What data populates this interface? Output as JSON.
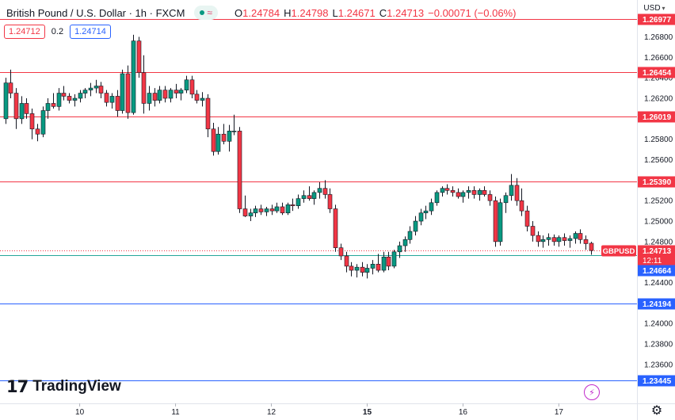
{
  "header": {
    "title": "British Pound / U.S. Dollar · 1h · FXCM",
    "ohlc": {
      "o_label": "O",
      "o": "1.24784",
      "h_label": "H",
      "h": "1.24798",
      "l_label": "L",
      "l": "1.24671",
      "c_label": "C",
      "c": "1.24713",
      "change": "−0.00071 (−0.06%)"
    }
  },
  "quote": {
    "bid": "1.24712",
    "spread": "0.2",
    "ask": "1.24714"
  },
  "currency": "USD",
  "branding": "TradingView",
  "colors": {
    "up": "#089981",
    "down": "#f23645",
    "candle": "#131722",
    "red_level": "#f23645",
    "blue_level": "#2962ff",
    "ema": "#26a69a"
  },
  "chart_data": {
    "type": "candlestick",
    "symbol": "GBPUSD",
    "timeframe": "1h",
    "ylim": [
      1.2322,
      1.2716
    ],
    "y_ticks": [
      "1.26800",
      "1.26600",
      "1.26400",
      "1.26200",
      "1.25800",
      "1.25600",
      "1.25200",
      "1.25000",
      "1.24800",
      "1.24400",
      "1.24000",
      "1.23800",
      "1.23600"
    ],
    "x_ticks": [
      {
        "label": "10",
        "bar": 14,
        "bold": false
      },
      {
        "label": "11",
        "bar": 32,
        "bold": false
      },
      {
        "label": "12",
        "bar": 50,
        "bold": false
      },
      {
        "label": "15",
        "bar": 68,
        "bold": true
      },
      {
        "label": "16",
        "bar": 86,
        "bold": false
      },
      {
        "label": "17",
        "bar": 104,
        "bold": false
      }
    ],
    "levels": [
      {
        "value": 1.26977,
        "label": "1.26977",
        "color": "red"
      },
      {
        "value": 1.26454,
        "label": "1.26454",
        "color": "red"
      },
      {
        "value": 1.26019,
        "label": "1.26019",
        "color": "red"
      },
      {
        "value": 1.2539,
        "label": "1.25390",
        "color": "red"
      },
      {
        "value": 1.24194,
        "label": "1.24194",
        "color": "blue"
      },
      {
        "value": 1.23445,
        "label": "1.23445",
        "color": "blue"
      }
    ],
    "current_price": {
      "value": 1.24713,
      "label": "1.24713",
      "symbol": "GBPUSD",
      "countdown": "12:11"
    },
    "ema": {
      "value": 1.24664,
      "label": "1.24664"
    },
    "candles": [
      [
        1.26,
        1.264,
        1.2595,
        1.2635
      ],
      [
        1.2635,
        1.2648,
        1.262,
        1.2625
      ],
      [
        1.2625,
        1.263,
        1.259,
        1.26
      ],
      [
        1.26,
        1.2622,
        1.2595,
        1.2615
      ],
      [
        1.2615,
        1.262,
        1.26,
        1.2605
      ],
      [
        1.2605,
        1.261,
        1.258,
        1.259
      ],
      [
        1.259,
        1.2595,
        1.2578,
        1.2585
      ],
      [
        1.2585,
        1.2612,
        1.2582,
        1.2608
      ],
      [
        1.2608,
        1.262,
        1.26,
        1.2615
      ],
      [
        1.2615,
        1.2625,
        1.261,
        1.2612
      ],
      [
        1.2612,
        1.263,
        1.2608,
        1.2625
      ],
      [
        1.2625,
        1.2632,
        1.2618,
        1.2622
      ],
      [
        1.2622,
        1.2625,
        1.2615,
        1.2618
      ],
      [
        1.2618,
        1.2624,
        1.2612,
        1.262
      ],
      [
        1.262,
        1.2628,
        1.2616,
        1.2625
      ],
      [
        1.2625,
        1.263,
        1.262,
        1.2628
      ],
      [
        1.2628,
        1.2635,
        1.2622,
        1.263
      ],
      [
        1.263,
        1.2638,
        1.2625,
        1.2632
      ],
      [
        1.2632,
        1.2636,
        1.262,
        1.2625
      ],
      [
        1.2625,
        1.2628,
        1.2612,
        1.2616
      ],
      [
        1.2616,
        1.2625,
        1.261,
        1.2622
      ],
      [
        1.2622,
        1.2628,
        1.2602,
        1.2608
      ],
      [
        1.2608,
        1.2648,
        1.2605,
        1.2644
      ],
      [
        1.2644,
        1.2652,
        1.26,
        1.2606
      ],
      [
        1.2606,
        1.2682,
        1.2604,
        1.2676
      ],
      [
        1.2676,
        1.268,
        1.264,
        1.2645
      ],
      [
        1.2645,
        1.2662,
        1.2605,
        1.2615
      ],
      [
        1.2615,
        1.2632,
        1.2608,
        1.2625
      ],
      [
        1.2625,
        1.263,
        1.2612,
        1.2618
      ],
      [
        1.2618,
        1.2632,
        1.2615,
        1.2628
      ],
      [
        1.2628,
        1.2632,
        1.2616,
        1.262
      ],
      [
        1.262,
        1.263,
        1.2616,
        1.2628
      ],
      [
        1.2628,
        1.2634,
        1.262,
        1.2625
      ],
      [
        1.2625,
        1.263,
        1.2618,
        1.2628
      ],
      [
        1.2628,
        1.2642,
        1.2625,
        1.2638
      ],
      [
        1.2638,
        1.2642,
        1.262,
        1.2624
      ],
      [
        1.2624,
        1.2628,
        1.2615,
        1.2618
      ],
      [
        1.2618,
        1.2626,
        1.2612,
        1.262
      ],
      [
        1.262,
        1.2624,
        1.2582,
        1.259
      ],
      [
        1.259,
        1.2596,
        1.2564,
        1.2568
      ],
      [
        1.2568,
        1.2592,
        1.2565,
        1.2585
      ],
      [
        1.2585,
        1.2595,
        1.2575,
        1.2578
      ],
      [
        1.2578,
        1.2594,
        1.2568,
        1.2588
      ],
      [
        1.2588,
        1.2604,
        1.2584,
        1.2588
      ],
      [
        1.2588,
        1.2592,
        1.2508,
        1.2512
      ],
      [
        1.2512,
        1.2525,
        1.2504,
        1.2505
      ],
      [
        1.2505,
        1.2512,
        1.25,
        1.2508
      ],
      [
        1.2508,
        1.2515,
        1.2504,
        1.2512
      ],
      [
        1.2512,
        1.2516,
        1.2506,
        1.2509
      ],
      [
        1.2509,
        1.2514,
        1.2505,
        1.2512
      ],
      [
        1.2512,
        1.2516,
        1.2506,
        1.251
      ],
      [
        1.251,
        1.2518,
        1.2508,
        1.2514
      ],
      [
        1.2514,
        1.2518,
        1.2506,
        1.2508
      ],
      [
        1.2508,
        1.2518,
        1.2506,
        1.2516
      ],
      [
        1.2516,
        1.2522,
        1.251,
        1.2515
      ],
      [
        1.2515,
        1.2526,
        1.2512,
        1.2522
      ],
      [
        1.2522,
        1.253,
        1.2518,
        1.2525
      ],
      [
        1.2525,
        1.2534,
        1.252,
        1.2522
      ],
      [
        1.2522,
        1.253,
        1.2516,
        1.2528
      ],
      [
        1.2528,
        1.2538,
        1.2522,
        1.2532
      ],
      [
        1.2532,
        1.254,
        1.2522,
        1.2526
      ],
      [
        1.2526,
        1.2532,
        1.2508,
        1.2512
      ],
      [
        1.2512,
        1.2516,
        1.247,
        1.2474
      ],
      [
        1.2474,
        1.2478,
        1.2462,
        1.2466
      ],
      [
        1.2466,
        1.247,
        1.245,
        1.2456
      ],
      [
        1.2456,
        1.246,
        1.2446,
        1.2452
      ],
      [
        1.2452,
        1.2458,
        1.2445,
        1.2455
      ],
      [
        1.2455,
        1.246,
        1.2446,
        1.245
      ],
      [
        1.245,
        1.2458,
        1.2444,
        1.2454
      ],
      [
        1.2454,
        1.2462,
        1.2448,
        1.2458
      ],
      [
        1.2458,
        1.2468,
        1.245,
        1.2452
      ],
      [
        1.2452,
        1.247,
        1.245,
        1.2465
      ],
      [
        1.2465,
        1.247,
        1.2452,
        1.2456
      ],
      [
        1.2456,
        1.2472,
        1.2454,
        1.247
      ],
      [
        1.247,
        1.248,
        1.2464,
        1.2476
      ],
      [
        1.2476,
        1.2485,
        1.247,
        1.2482
      ],
      [
        1.2482,
        1.2495,
        1.2478,
        1.249
      ],
      [
        1.249,
        1.2505,
        1.2486,
        1.25
      ],
      [
        1.25,
        1.2512,
        1.2496,
        1.2508
      ],
      [
        1.2508,
        1.2515,
        1.2502,
        1.251
      ],
      [
        1.251,
        1.2522,
        1.2506,
        1.2518
      ],
      [
        1.2518,
        1.253,
        1.2515,
        1.2528
      ],
      [
        1.2528,
        1.2534,
        1.2524,
        1.2532
      ],
      [
        1.2532,
        1.2536,
        1.2526,
        1.253
      ],
      [
        1.253,
        1.2534,
        1.2524,
        1.2528
      ],
      [
        1.2528,
        1.2532,
        1.2522,
        1.2524
      ],
      [
        1.2524,
        1.253,
        1.2518,
        1.2528
      ],
      [
        1.2528,
        1.2534,
        1.2522,
        1.253
      ],
      [
        1.253,
        1.2534,
        1.2522,
        1.2526
      ],
      [
        1.2526,
        1.2532,
        1.252,
        1.253
      ],
      [
        1.253,
        1.2534,
        1.2524,
        1.2526
      ],
      [
        1.2526,
        1.253,
        1.2515,
        1.252
      ],
      [
        1.252,
        1.2524,
        1.2475,
        1.248
      ],
      [
        1.248,
        1.2522,
        1.2476,
        1.2518
      ],
      [
        1.2518,
        1.2528,
        1.2508,
        1.2525
      ],
      [
        1.2525,
        1.2546,
        1.252,
        1.2535
      ],
      [
        1.2535,
        1.2542,
        1.2515,
        1.252
      ],
      [
        1.252,
        1.2532,
        1.2505,
        1.251
      ],
      [
        1.251,
        1.2515,
        1.249,
        1.2495
      ],
      [
        1.2495,
        1.25,
        1.248,
        1.2486
      ],
      [
        1.2486,
        1.249,
        1.2475,
        1.248
      ],
      [
        1.248,
        1.2486,
        1.2474,
        1.2482
      ],
      [
        1.2482,
        1.2488,
        1.2476,
        1.2484
      ],
      [
        1.2484,
        1.2487,
        1.2476,
        1.248
      ],
      [
        1.248,
        1.2486,
        1.2475,
        1.2484
      ],
      [
        1.2484,
        1.2488,
        1.2476,
        1.2481
      ],
      [
        1.2481,
        1.2486,
        1.2474,
        1.2483
      ],
      [
        1.2483,
        1.249,
        1.2478,
        1.2488
      ],
      [
        1.2488,
        1.2492,
        1.2478,
        1.2482
      ],
      [
        1.2482,
        1.2486,
        1.2472,
        1.2478
      ],
      [
        1.24784,
        1.24798,
        1.24671,
        1.24713
      ]
    ]
  }
}
